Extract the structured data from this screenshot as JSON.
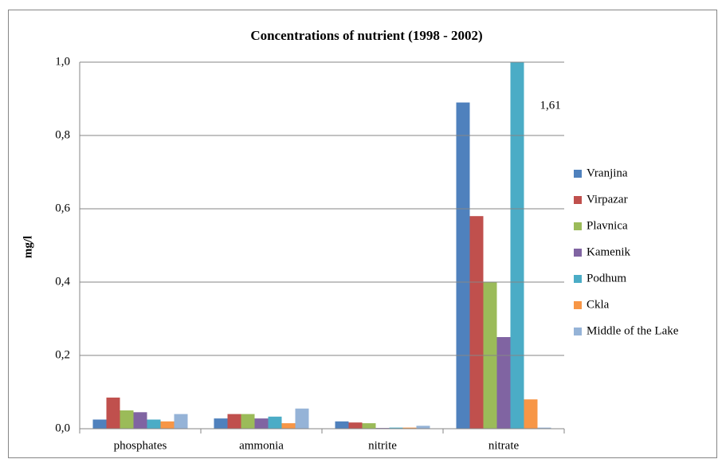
{
  "chart_data": {
    "type": "bar",
    "title": "Concentrations  of nutrient  (1998 - 2002)",
    "y_label": "mg/l",
    "categories": [
      "phosphates",
      "ammonia",
      "nitrite",
      "nitrate"
    ],
    "series": [
      {
        "name": "Vranjina",
        "color": "#4f81bd",
        "values": [
          0.025,
          0.028,
          0.02,
          0.89
        ]
      },
      {
        "name": "Virpazar",
        "color": "#c0504d",
        "values": [
          0.085,
          0.04,
          0.017,
          0.58
        ]
      },
      {
        "name": "Plavnica",
        "color": "#9bbb59",
        "values": [
          0.05,
          0.04,
          0.015,
          0.4
        ]
      },
      {
        "name": "Kamenik",
        "color": "#8064a2",
        "values": [
          0.045,
          0.028,
          0.002,
          0.25
        ]
      },
      {
        "name": "Podhum",
        "color": "#4bacc6",
        "values": [
          0.025,
          0.033,
          0.003,
          1.61
        ],
        "value_labels": [
          null,
          null,
          null,
          "1,61"
        ]
      },
      {
        "name": "Ckla",
        "color": "#f79646",
        "values": [
          0.02,
          0.015,
          0.003,
          0.08
        ]
      },
      {
        "name": "Middle of the Lake",
        "color": "#95b3d7",
        "values": [
          0.04,
          0.055,
          0.008,
          0.003
        ]
      }
    ],
    "ylim": [
      0,
      1
    ],
    "yticks": [
      {
        "value": 0,
        "label": "0,0"
      },
      {
        "value": 0.2,
        "label": "0,2"
      },
      {
        "value": 0.4,
        "label": "0,4"
      },
      {
        "value": 0.6,
        "label": "0,6"
      },
      {
        "value": 0.8,
        "label": "0,8"
      },
      {
        "value": 1,
        "label": "1,0"
      }
    ],
    "grid": true,
    "legend": "right"
  }
}
